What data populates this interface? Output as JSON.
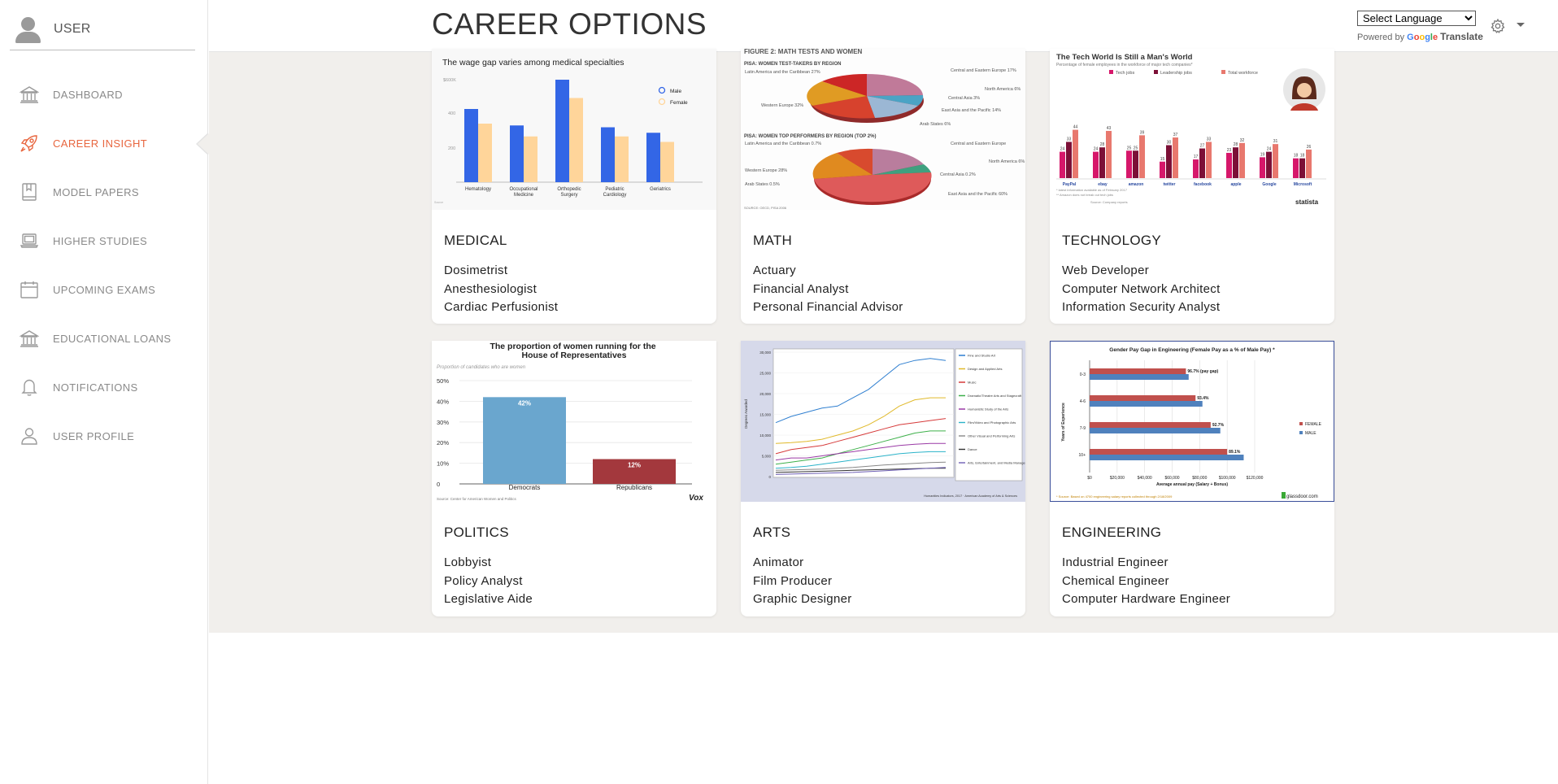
{
  "sidebar": {
    "user_label": "USER",
    "items": [
      {
        "label": "DASHBOARD",
        "icon": "bank-icon"
      },
      {
        "label": "CAREER INSIGHT",
        "icon": "rocket-icon",
        "active": true
      },
      {
        "label": "MODEL PAPERS",
        "icon": "book-icon"
      },
      {
        "label": "HIGHER STUDIES",
        "icon": "laptop-icon"
      },
      {
        "label": "UPCOMING EXAMS",
        "icon": "calendar-icon"
      },
      {
        "label": "EDUCATIONAL LOANS",
        "icon": "bank-icon"
      },
      {
        "label": "NOTIFICATIONS",
        "icon": "bell-icon"
      },
      {
        "label": "USER PROFILE",
        "icon": "user-icon"
      }
    ],
    "accent_color": "#e8663f"
  },
  "header": {
    "title": "CAREER OPTIONS",
    "language_select": "Select Language",
    "powered_by": "Powered by",
    "google": "Google",
    "translate": "Translate"
  },
  "cards": [
    {
      "category": "MEDICAL",
      "jobs": [
        "Dosimetrist",
        "Anesthesiologist",
        "Cardiac Perfusionist"
      ],
      "image": {
        "title": "The wage gap varies among medical specialties",
        "ytick_top": "$600K",
        "ytick_mid": "400",
        "ytick_low": "200",
        "legend_male": "Male",
        "legend_female": "Female",
        "categories": [
          "Hematology",
          "Occupational Medicine",
          "Orthopedic Surgery",
          "Pediatric Cardiology",
          "Geriatrics"
        ],
        "male": [
          400,
          310,
          560,
          300,
          270
        ],
        "female": [
          320,
          250,
          460,
          250,
          220
        ]
      }
    },
    {
      "category": "MATH",
      "jobs": [
        "Actuary",
        "Financial Analyst",
        "Personal Financial Advisor"
      ],
      "image": {
        "title": "FIGURE 2: MATH TESTS AND WOMEN",
        "pie1_title": "PISA: WOMEN TEST-TAKERS BY REGION",
        "pie2_title": "PISA: WOMEN TOP PERFORMERS BY REGION (TOP 2%)",
        "pie1_labels": [
          "Latin America and the Caribbean 27%",
          "Central and Eastern Europe 17%",
          "North America 6%",
          "Central Asia 3%",
          "East Asia and the Pacific 14%",
          "Arab States 6%",
          "Western Europe 32%"
        ],
        "pie2_labels": [
          "Latin America and the Caribbean 0.7%",
          "Central and Eastern Europe",
          "North America 6%",
          "Western Europe 28%",
          "Arab States 0.5%",
          "Central Asia 0.2%",
          "East Asia and the Pacific 60%"
        ],
        "source": "SOURCE: OECD, PISA 2006"
      }
    },
    {
      "category": "TECHNOLOGY",
      "jobs": [
        "Web Developer",
        "Computer Network Architect",
        "Information Security Analyst"
      ],
      "image": {
        "title": "The Tech World Is Still a Man's World",
        "subtitle": "Percentage of female employees in the workforce of major tech companies*",
        "legend": [
          "Tech jobs",
          "Leadership jobs",
          "Total workforce"
        ],
        "companies": [
          "PayPal",
          "ebay",
          "amazon",
          "twitter",
          "facebook",
          "apple",
          "Google",
          "Microsoft"
        ],
        "tech": [
          24,
          24,
          25,
          15,
          17,
          23,
          19,
          18
        ],
        "leadership": [
          33,
          28,
          25,
          30,
          27,
          28,
          24,
          18
        ],
        "total": [
          44,
          43,
          39,
          37,
          33,
          32,
          31,
          26
        ],
        "notes": [
          "* latest information available as of February 2017",
          "** Amazon does not break out tech jobs",
          "Source: Company reports"
        ],
        "brand": "statista"
      }
    },
    {
      "category": "POLITICS",
      "jobs": [
        "Lobbyist",
        "Policy Analyst",
        "Legislative Aide"
      ],
      "image": {
        "title": "The proportion of women running for the House of Representatives",
        "subtitle": "Proportion of candidates who are women",
        "yticks": [
          "50%",
          "40%",
          "30%",
          "20%",
          "10%",
          "0"
        ],
        "categories": [
          "Democrats",
          "Republicans"
        ],
        "values": [
          42,
          12
        ],
        "value_labels": [
          "42%",
          "12%"
        ],
        "source": "Source: Center for American Women and Politics",
        "brand": "Vox"
      }
    },
    {
      "category": "ARTS",
      "jobs": [
        "Animator",
        "Film Producer",
        "Graphic Designer"
      ],
      "image": {
        "ylabel": "Degrees Awarded",
        "yticks": [
          "30,000",
          "25,000",
          "20,000",
          "15,000",
          "10,000",
          "5,000",
          "0"
        ],
        "legend": [
          "Fine and Studio Art",
          "Design and Applied Arts",
          "Music",
          "Dramatic/Theatre Arts and Stagecraft",
          "Humanistic Study of the Arts",
          "Film/Video and Photographic Arts",
          "Other Visual and Performing Arts",
          "Dance",
          "Arts, Entertainment, and Media Management"
        ],
        "source": "Humanities Indicators, 2017 · American Academy of Arts & Sciences"
      }
    },
    {
      "category": "ENGINEERING",
      "jobs": [
        "Industrial Engineer",
        "Chemical Engineer",
        "Computer Hardware Engineer"
      ],
      "image": {
        "title": "Gender Pay Gap in Engineering (Female Pay as a % of Male Pay) *",
        "ylabel": "Years of Experience",
        "xlabel": "Average annual pay (Salary + Bonus)",
        "categories": [
          "0-3",
          "4-6",
          "7-9",
          "10+"
        ],
        "female": [
          70000,
          77000,
          88000,
          100000
        ],
        "male": [
          72000,
          82000,
          95000,
          112000
        ],
        "labels": [
          "96.7% (pay gap)",
          "93.4%",
          "92.7%",
          "89.1%"
        ],
        "xticks": [
          "$0",
          "$20,000",
          "$40,000",
          "$60,000",
          "$80,000",
          "$100,000",
          "$120,000"
        ],
        "legend": [
          "FEMALE",
          "MALE"
        ],
        "source": "* Source: Based on 4700 engineering salary reports collected through 2/18/2009",
        "brand": "glassdoor.com"
      }
    }
  ]
}
